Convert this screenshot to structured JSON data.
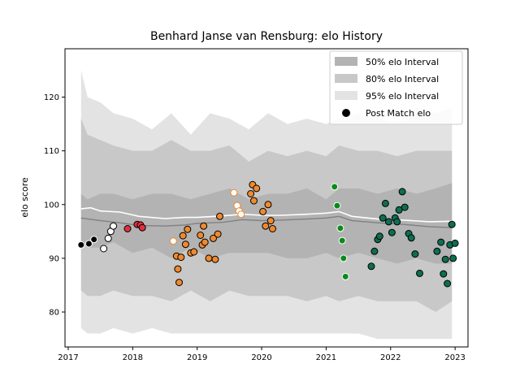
{
  "chart_data": {
    "type": "scatter",
    "title": "Benhard Janse van Rensburg: elo History",
    "xlabel": "",
    "ylabel": "elo score",
    "xlim": [
      2016.95,
      2023.2
    ],
    "ylim": [
      73.5,
      129
    ],
    "x_ticks": [
      2017,
      2018,
      2019,
      2020,
      2021,
      2022,
      2023
    ],
    "y_ticks": [
      80,
      90,
      100,
      110,
      120
    ],
    "legend": {
      "placement": "top-right",
      "entries": [
        {
          "label": "50% elo Interval",
          "kind": "band",
          "color": "#b3b3b3"
        },
        {
          "label": "80% elo Interval",
          "kind": "band",
          "color": "#c8c8c8"
        },
        {
          "label": "95% elo Interval",
          "kind": "band",
          "color": "#e3e3e3"
        },
        {
          "label": "Post Match elo",
          "kind": "marker",
          "color": "#000000"
        }
      ]
    },
    "bands": {
      "x": [
        2017.2,
        2017.3,
        2017.5,
        2017.7,
        2018.0,
        2018.3,
        2018.6,
        2018.9,
        2019.2,
        2019.5,
        2019.8,
        2020.1,
        2020.4,
        2020.7,
        2021.0,
        2021.2,
        2021.5,
        2021.8,
        2022.1,
        2022.4,
        2022.7,
        2022.95
      ],
      "p95_upper": [
        125,
        120,
        119,
        117,
        116,
        114,
        117,
        113,
        117,
        116,
        114,
        117,
        115,
        116,
        115,
        116,
        117,
        116,
        115,
        118,
        117,
        118
      ],
      "p80_upper": [
        116,
        113,
        112,
        111,
        110,
        110,
        112,
        110,
        110,
        111,
        108,
        110,
        109,
        110,
        109,
        111,
        110,
        110,
        109,
        110,
        110,
        110
      ],
      "p50_upper": [
        102,
        101,
        102,
        102,
        101,
        102,
        102,
        101,
        102,
        103,
        101,
        102,
        102,
        103,
        101,
        103,
        103,
        102,
        103,
        102,
        103,
        104
      ],
      "p50_lower": [
        93,
        92,
        92,
        93,
        91,
        92,
        90,
        92,
        90,
        91,
        91,
        91,
        90,
        90,
        91,
        90,
        91,
        90,
        89,
        90,
        89,
        89
      ],
      "p80_lower": [
        84,
        83,
        83,
        84,
        83,
        83,
        82,
        84,
        82,
        84,
        83,
        83,
        83,
        82,
        83,
        82,
        83,
        82,
        82,
        82,
        80,
        82
      ],
      "p95_lower": [
        77,
        76,
        76,
        77,
        76,
        77,
        76,
        76,
        76,
        76,
        76,
        76,
        76,
        76,
        76,
        76,
        76,
        75,
        75,
        75,
        75,
        75
      ]
    },
    "series": [
      {
        "kind": "median_line",
        "color": "#808080",
        "x": [
          2017.2,
          2017.5,
          2017.8,
          2018.1,
          2018.5,
          2018.8,
          2019.0,
          2019.4,
          2019.7,
          2020.0,
          2020.3,
          2020.7,
          2021.0,
          2021.2,
          2021.4,
          2021.8,
          2022.2,
          2022.6,
          2022.95
        ],
        "y": [
          97.5,
          97.0,
          96.6,
          96.1,
          96.0,
          96.2,
          96.5,
          96.7,
          97.2,
          97.0,
          97.1,
          97.3,
          97.5,
          97.8,
          97.0,
          96.6,
          96.3,
          95.9,
          95.7
        ]
      },
      {
        "kind": "mean_line",
        "color": "#ffffff",
        "x": [
          2017.2,
          2017.35,
          2017.5,
          2017.8,
          2018.1,
          2018.5,
          2018.8,
          2019.0,
          2019.4,
          2019.7,
          2020.0,
          2020.3,
          2020.7,
          2021.0,
          2021.2,
          2021.4,
          2021.8,
          2022.2,
          2022.6,
          2022.95
        ],
        "y": [
          99.2,
          99.4,
          98.8,
          98.6,
          97.8,
          97.4,
          97.6,
          97.6,
          97.9,
          98.2,
          98.0,
          98.0,
          98.2,
          98.4,
          98.7,
          97.8,
          97.3,
          97.1,
          96.8,
          96.9
        ]
      },
      {
        "kind": "points",
        "fill": "#000000",
        "stroke": "#ffffff",
        "x": [
          2017.2,
          2017.32,
          2017.4
        ],
        "y": [
          92.5,
          92.7,
          93.5
        ]
      },
      {
        "kind": "points",
        "fill": "#ffffff",
        "stroke": "#000000",
        "x": [
          2017.55,
          2017.62,
          2017.66,
          2017.7
        ],
        "y": [
          91.8,
          93.7,
          95.0,
          96.0
        ]
      },
      {
        "kind": "points",
        "fill": "#e0303e",
        "stroke": "#000000",
        "x": [
          2017.92,
          2018.07,
          2018.12,
          2018.15
        ],
        "y": [
          95.5,
          96.3,
          96.2,
          95.7
        ]
      },
      {
        "kind": "points",
        "fill": "#ffffff",
        "stroke": "#f0892e",
        "x": [
          2018.63,
          2019.57,
          2019.62,
          2019.65,
          2019.68
        ],
        "y": [
          93.2,
          102.2,
          99.8,
          98.8,
          98.2
        ]
      },
      {
        "kind": "points",
        "fill": "#f0892e",
        "stroke": "#000000",
        "x": [
          2018.68,
          2018.7,
          2018.72,
          2018.75,
          2018.78,
          2018.82,
          2018.85,
          2018.9,
          2018.95,
          2019.05,
          2019.08,
          2019.1,
          2019.12,
          2019.18,
          2019.25,
          2019.28,
          2019.32,
          2019.35,
          2019.83,
          2019.86,
          2019.88,
          2019.92,
          2020.02,
          2020.06,
          2020.1,
          2020.14,
          2020.17
        ],
        "y": [
          90.4,
          88.0,
          85.5,
          90.2,
          94.2,
          92.6,
          95.4,
          91.0,
          91.2,
          94.3,
          92.5,
          96.0,
          93.0,
          90.0,
          93.7,
          89.8,
          94.5,
          97.8,
          102.0,
          103.7,
          100.7,
          103.0,
          98.7,
          96.0,
          100.0,
          97.0,
          95.5
        ]
      },
      {
        "kind": "points",
        "fill": "#0b8a1a",
        "stroke": "#ffffff",
        "x": [
          2021.13,
          2021.17,
          2021.22,
          2021.25,
          2021.27,
          2021.3
        ],
        "y": [
          103.3,
          99.8,
          95.6,
          93.3,
          90.0,
          86.6
        ]
      },
      {
        "kind": "points",
        "fill": "#0d6e52",
        "stroke": "#000000",
        "x": [
          2021.7,
          2021.75,
          2021.8,
          2021.83,
          2021.88,
          2021.92,
          2021.97,
          2022.02,
          2022.07,
          2022.1,
          2022.13,
          2022.18,
          2022.22,
          2022.28,
          2022.32,
          2022.38,
          2022.45,
          2022.72,
          2022.78,
          2022.85,
          2022.88,
          2022.92,
          2022.97,
          2023.0,
          2022.82,
          2022.95
        ],
        "y": [
          88.5,
          91.3,
          93.5,
          94.1,
          97.5,
          100.2,
          96.8,
          94.8,
          97.5,
          96.8,
          99.0,
          102.4,
          99.5,
          94.6,
          93.8,
          90.8,
          87.2,
          91.3,
          93.0,
          89.8,
          85.3,
          92.5,
          90.0,
          92.8,
          87.1,
          96.3
        ]
      }
    ]
  }
}
